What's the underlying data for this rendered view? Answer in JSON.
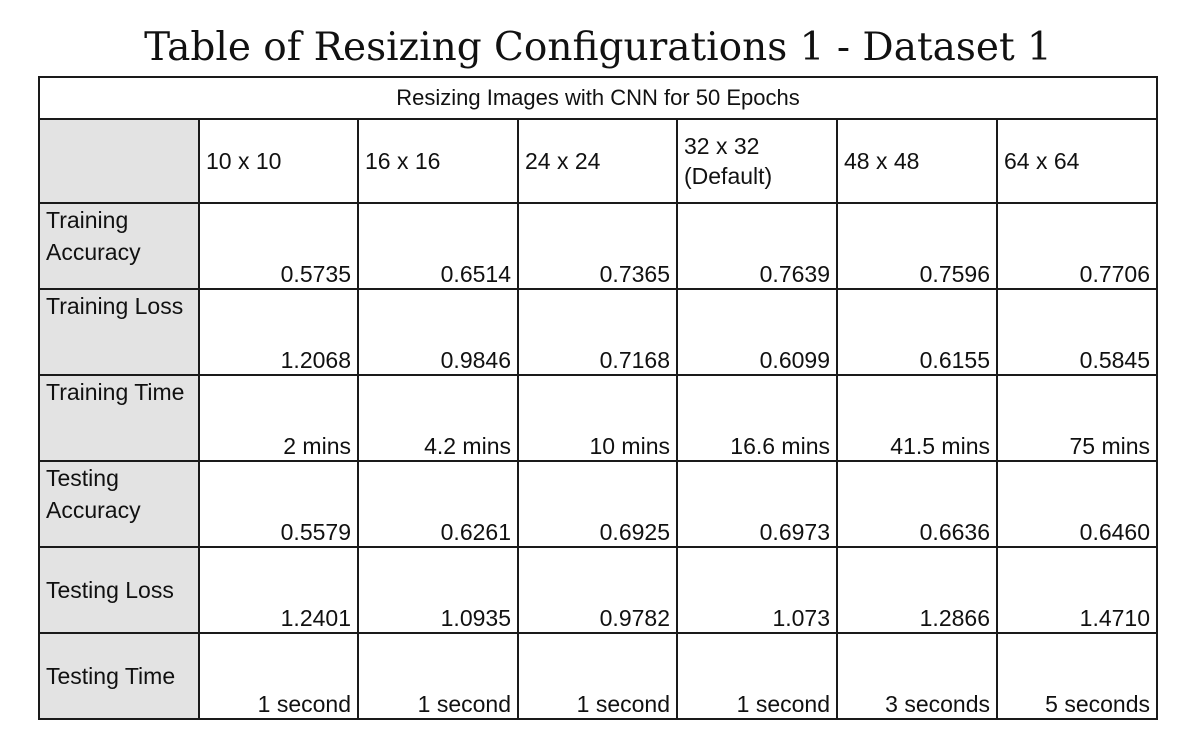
{
  "title": "Table of Resizing Configurations 1 - Dataset 1",
  "table": {
    "caption": "Resizing Images with CNN for 50 Epochs",
    "columns": [
      "10 x 10",
      "16 x 16",
      "24 x 24",
      "32 x 32 (Default)",
      "48 x 48",
      "64 x 64"
    ],
    "rows": [
      {
        "label": "Training Accuracy",
        "values": [
          "0.5735",
          "0.6514",
          "0.7365",
          "0.7639",
          "0.7596",
          "0.7706"
        ]
      },
      {
        "label": "Training Loss",
        "values": [
          "1.2068",
          "0.9846",
          "0.7168",
          "0.6099",
          "0.6155",
          "0.5845"
        ]
      },
      {
        "label": "Training Time",
        "values": [
          "2 mins",
          "4.2 mins",
          "10 mins",
          "16.6 mins",
          "41.5 mins",
          "75 mins"
        ]
      },
      {
        "label": "Testing Accuracy",
        "values": [
          "0.5579",
          "0.6261",
          "0.6925",
          "0.6973",
          "0.6636",
          "0.6460"
        ]
      },
      {
        "label": "Testing Loss",
        "values": [
          "1.2401",
          "1.0935",
          "0.9782",
          "1.073",
          "1.2866",
          "1.4710"
        ]
      },
      {
        "label": "Testing Time",
        "values": [
          "1 second",
          "1 second",
          "1 second",
          "1 second",
          "3 seconds",
          "5 seconds"
        ]
      }
    ]
  }
}
